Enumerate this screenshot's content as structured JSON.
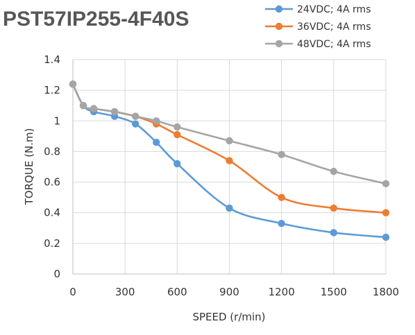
{
  "chart_data": {
    "type": "line",
    "title": "PST57IP255-4F40S",
    "xlabel": "SPEED (r/min)",
    "ylabel": "TORQUE (N.m)",
    "xlim": [
      0,
      1800
    ],
    "ylim": [
      0,
      1.4
    ],
    "xticks": [
      0,
      300,
      600,
      900,
      1200,
      1500,
      1800
    ],
    "yticks": [
      0,
      0.2,
      0.4,
      0.6,
      0.8,
      1,
      1.2,
      1.4
    ],
    "xtick_labels": [
      "0",
      "300",
      "600",
      "900",
      "1200",
      "1500",
      "1800"
    ],
    "ytick_labels": [
      "0",
      "0.2",
      "0.4",
      "0.6",
      "0.8",
      "1",
      "1.2",
      "1.4"
    ],
    "grid": true,
    "legend_position": "top-right",
    "series": [
      {
        "name": "24VDC; 4A rms",
        "color": "#5B9BD5",
        "x": [
          0,
          60,
          120,
          240,
          360,
          480,
          600,
          900,
          1200,
          1500,
          1800
        ],
        "y": [
          1.24,
          1.1,
          1.06,
          1.03,
          0.98,
          0.86,
          0.72,
          0.43,
          0.33,
          0.27,
          0.24
        ]
      },
      {
        "name": "36VDC; 4A rms",
        "color": "#ED7D31",
        "x": [
          0,
          60,
          120,
          240,
          360,
          480,
          600,
          900,
          1200,
          1500,
          1800
        ],
        "y": [
          1.24,
          1.1,
          1.08,
          1.06,
          1.03,
          0.98,
          0.91,
          0.74,
          0.5,
          0.43,
          0.4
        ]
      },
      {
        "name": "48VDC; 4A rms",
        "color": "#A5A5A5",
        "x": [
          0,
          60,
          120,
          240,
          360,
          480,
          600,
          900,
          1200,
          1500,
          1800
        ],
        "y": [
          1.24,
          1.1,
          1.08,
          1.06,
          1.03,
          1.0,
          0.96,
          0.87,
          0.78,
          0.67,
          0.59
        ]
      }
    ]
  }
}
